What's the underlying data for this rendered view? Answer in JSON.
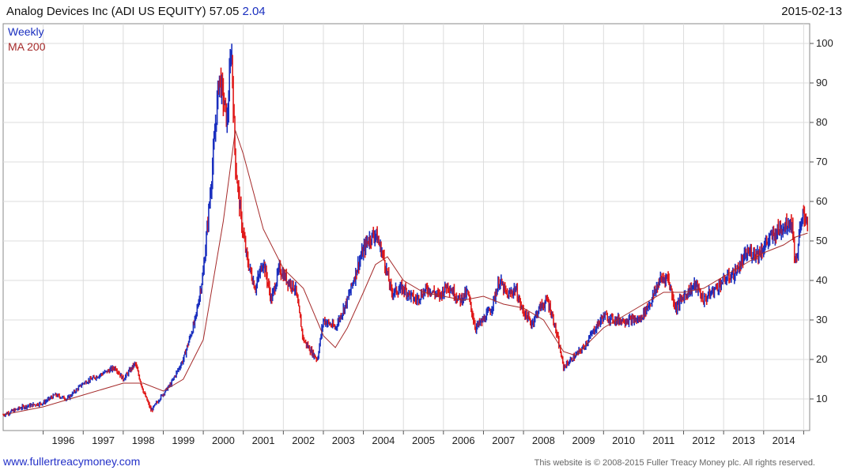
{
  "header": {
    "title": "Analog Devices Inc (ADI US EQUITY) 57.05",
    "change": "2.04",
    "date": "2015-02-13"
  },
  "footer": {
    "link": "www.fullertreacymoney.com",
    "copyright": "This website is © 2008-2015 Fuller Treacy Money plc. All rights reserved."
  },
  "chart_data": {
    "type": "line",
    "legend": [
      {
        "label": "Weekly",
        "color": "#1a2fbf"
      },
      {
        "label": "MA 200",
        "color": "#a52a2a"
      }
    ],
    "legend_position": "top-left",
    "grid": true,
    "y_axis_side": "right",
    "ylim": [
      2,
      105
    ],
    "yticks": [
      10,
      20,
      30,
      40,
      50,
      60,
      70,
      80,
      90,
      100
    ],
    "xlim": [
      1995.0,
      2015.15
    ],
    "xticks": [
      "1996",
      "1997",
      "1998",
      "1999",
      "2000",
      "2001",
      "2002",
      "2003",
      "2004",
      "2005",
      "2006",
      "2007",
      "2008",
      "2009",
      "2010",
      "2011",
      "2012",
      "2013",
      "2014"
    ],
    "colors": {
      "up": "#1a2fbf",
      "down": "#e01818",
      "ma": "#a52a2a"
    },
    "series": [
      {
        "name": "Weekly",
        "x": [
          1995.0,
          1995.5,
          1996.0,
          1996.3,
          1996.6,
          1997.0,
          1997.4,
          1997.8,
          1998.0,
          1998.3,
          1998.5,
          1998.7,
          1998.9,
          1999.2,
          1999.5,
          1999.8,
          2000.0,
          2000.2,
          2000.4,
          2000.6,
          2000.7,
          2000.8,
          2000.95,
          2001.1,
          2001.3,
          2001.5,
          2001.7,
          2001.9,
          2002.1,
          2002.3,
          2002.5,
          2002.7,
          2002.85,
          2003.0,
          2003.3,
          2003.6,
          2003.9,
          2004.1,
          2004.3,
          2004.5,
          2004.7,
          2005.0,
          2005.3,
          2005.6,
          2005.9,
          2006.1,
          2006.4,
          2006.6,
          2006.8,
          2007.0,
          2007.2,
          2007.4,
          2007.6,
          2007.8,
          2007.95,
          2008.2,
          2008.4,
          2008.6,
          2008.75,
          2008.9,
          2009.0,
          2009.2,
          2009.5,
          2009.8,
          2010.0,
          2010.3,
          2010.6,
          2010.9,
          2011.2,
          2011.4,
          2011.6,
          2011.8,
          2012.0,
          2012.3,
          2012.5,
          2012.8,
          2013.0,
          2013.3,
          2013.6,
          2013.9,
          2014.1,
          2014.3,
          2014.5,
          2014.7,
          2014.8,
          2014.9,
          2015.0,
          2015.1
        ],
        "values": [
          6,
          8,
          9,
          11,
          10,
          14,
          16,
          18,
          15,
          19,
          12,
          7,
          10,
          14,
          20,
          30,
          42,
          65,
          92,
          80,
          100,
          70,
          55,
          45,
          38,
          45,
          35,
          43,
          40,
          38,
          25,
          22,
          20,
          30,
          28,
          35,
          45,
          50,
          52,
          46,
          37,
          38,
          35,
          38,
          36,
          39,
          35,
          37,
          28,
          30,
          33,
          40,
          36,
          38,
          33,
          29,
          33,
          35,
          30,
          23,
          18,
          20,
          23,
          28,
          31,
          30,
          30,
          30,
          35,
          40,
          41,
          33,
          36,
          39,
          35,
          38,
          40,
          42,
          47,
          47,
          50,
          52,
          54,
          55,
          44,
          52,
          57,
          55
        ]
      },
      {
        "name": "MA 200",
        "x": [
          1995.0,
          1996.0,
          1997.0,
          1998.0,
          1998.5,
          1999.0,
          1999.5,
          2000.0,
          2000.5,
          2000.8,
          2001.0,
          2001.5,
          2002.0,
          2002.5,
          2003.0,
          2003.3,
          2003.6,
          2004.0,
          2004.3,
          2004.6,
          2005.0,
          2005.5,
          2006.0,
          2006.5,
          2007.0,
          2007.5,
          2008.0,
          2008.5,
          2009.0,
          2009.3,
          2009.6,
          2010.0,
          2010.5,
          2011.0,
          2011.5,
          2012.0,
          2012.5,
          2013.0,
          2013.5,
          2014.0,
          2014.5,
          2014.8,
          2015.1
        ],
        "values": [
          6,
          8,
          11,
          14,
          14,
          12,
          15,
          25,
          55,
          78,
          72,
          53,
          43,
          38,
          26,
          23,
          28,
          37,
          44,
          46,
          40,
          37,
          36,
          35,
          36,
          34,
          33,
          30,
          22,
          21,
          24,
          28,
          31,
          34,
          37,
          37,
          38,
          41,
          44,
          47,
          49,
          51,
          52
        ]
      }
    ]
  }
}
